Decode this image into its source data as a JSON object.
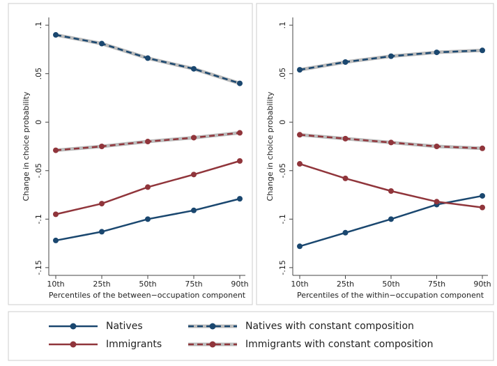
{
  "chart_data": [
    {
      "type": "line",
      "x_label": "Percentiles of the between−occupation component",
      "y_label": "Change in choice probability",
      "categories": [
        "10th",
        "25th",
        "50th",
        "75th",
        "90th"
      ],
      "ylim": [
        -0.158,
        0.108
      ],
      "yticks": [
        {
          "value": 0.1,
          "label": ".1"
        },
        {
          "value": 0.05,
          "label": ".05"
        },
        0,
        {
          "value": -0.05,
          "label": "-.05"
        },
        {
          "value": -0.1,
          "label": "-.1"
        },
        {
          "value": -0.15,
          "label": "-.15"
        }
      ],
      "series": [
        {
          "name": "Natives",
          "color": "#1a476f",
          "style": "solid",
          "values": [
            -0.122,
            -0.113,
            -0.1,
            -0.091,
            -0.079
          ]
        },
        {
          "name": "Natives with constant composition",
          "color": "#1a476f",
          "style": "dashed",
          "values": [
            0.09,
            0.081,
            0.066,
            0.055,
            0.04
          ]
        },
        {
          "name": "Immigrants",
          "color": "#90353b",
          "style": "solid",
          "values": [
            -0.095,
            -0.084,
            -0.067,
            -0.054,
            -0.04
          ]
        },
        {
          "name": "Immigrants with constant composition",
          "color": "#90353b",
          "style": "dashed",
          "values": [
            -0.029,
            -0.025,
            -0.02,
            -0.016,
            -0.011
          ]
        }
      ]
    },
    {
      "type": "line",
      "x_label": "Percentiles of the within−occupation component",
      "y_label": "Change in choice probability",
      "categories": [
        "10th",
        "25th",
        "50th",
        "75th",
        "90th"
      ],
      "ylim": [
        -0.158,
        0.108
      ],
      "yticks": [
        {
          "value": 0.1,
          "label": ".1"
        },
        {
          "value": 0.05,
          "label": ".05"
        },
        0,
        {
          "value": -0.05,
          "label": "-.05"
        },
        {
          "value": -0.1,
          "label": "-.1"
        },
        {
          "value": -0.15,
          "label": "-.15"
        }
      ],
      "series": [
        {
          "name": "Natives",
          "color": "#1a476f",
          "style": "solid",
          "values": [
            -0.128,
            -0.114,
            -0.1,
            -0.085,
            -0.076
          ]
        },
        {
          "name": "Natives with constant composition",
          "color": "#1a476f",
          "style": "dashed",
          "values": [
            0.054,
            0.062,
            0.068,
            0.072,
            0.074
          ]
        },
        {
          "name": "Immigrants",
          "color": "#90353b",
          "style": "solid",
          "values": [
            -0.043,
            -0.058,
            -0.071,
            -0.082,
            -0.088
          ]
        },
        {
          "name": "Immigrants with constant composition",
          "color": "#90353b",
          "style": "dashed",
          "values": [
            -0.013,
            -0.017,
            -0.021,
            -0.025,
            -0.027
          ]
        }
      ]
    }
  ]
}
